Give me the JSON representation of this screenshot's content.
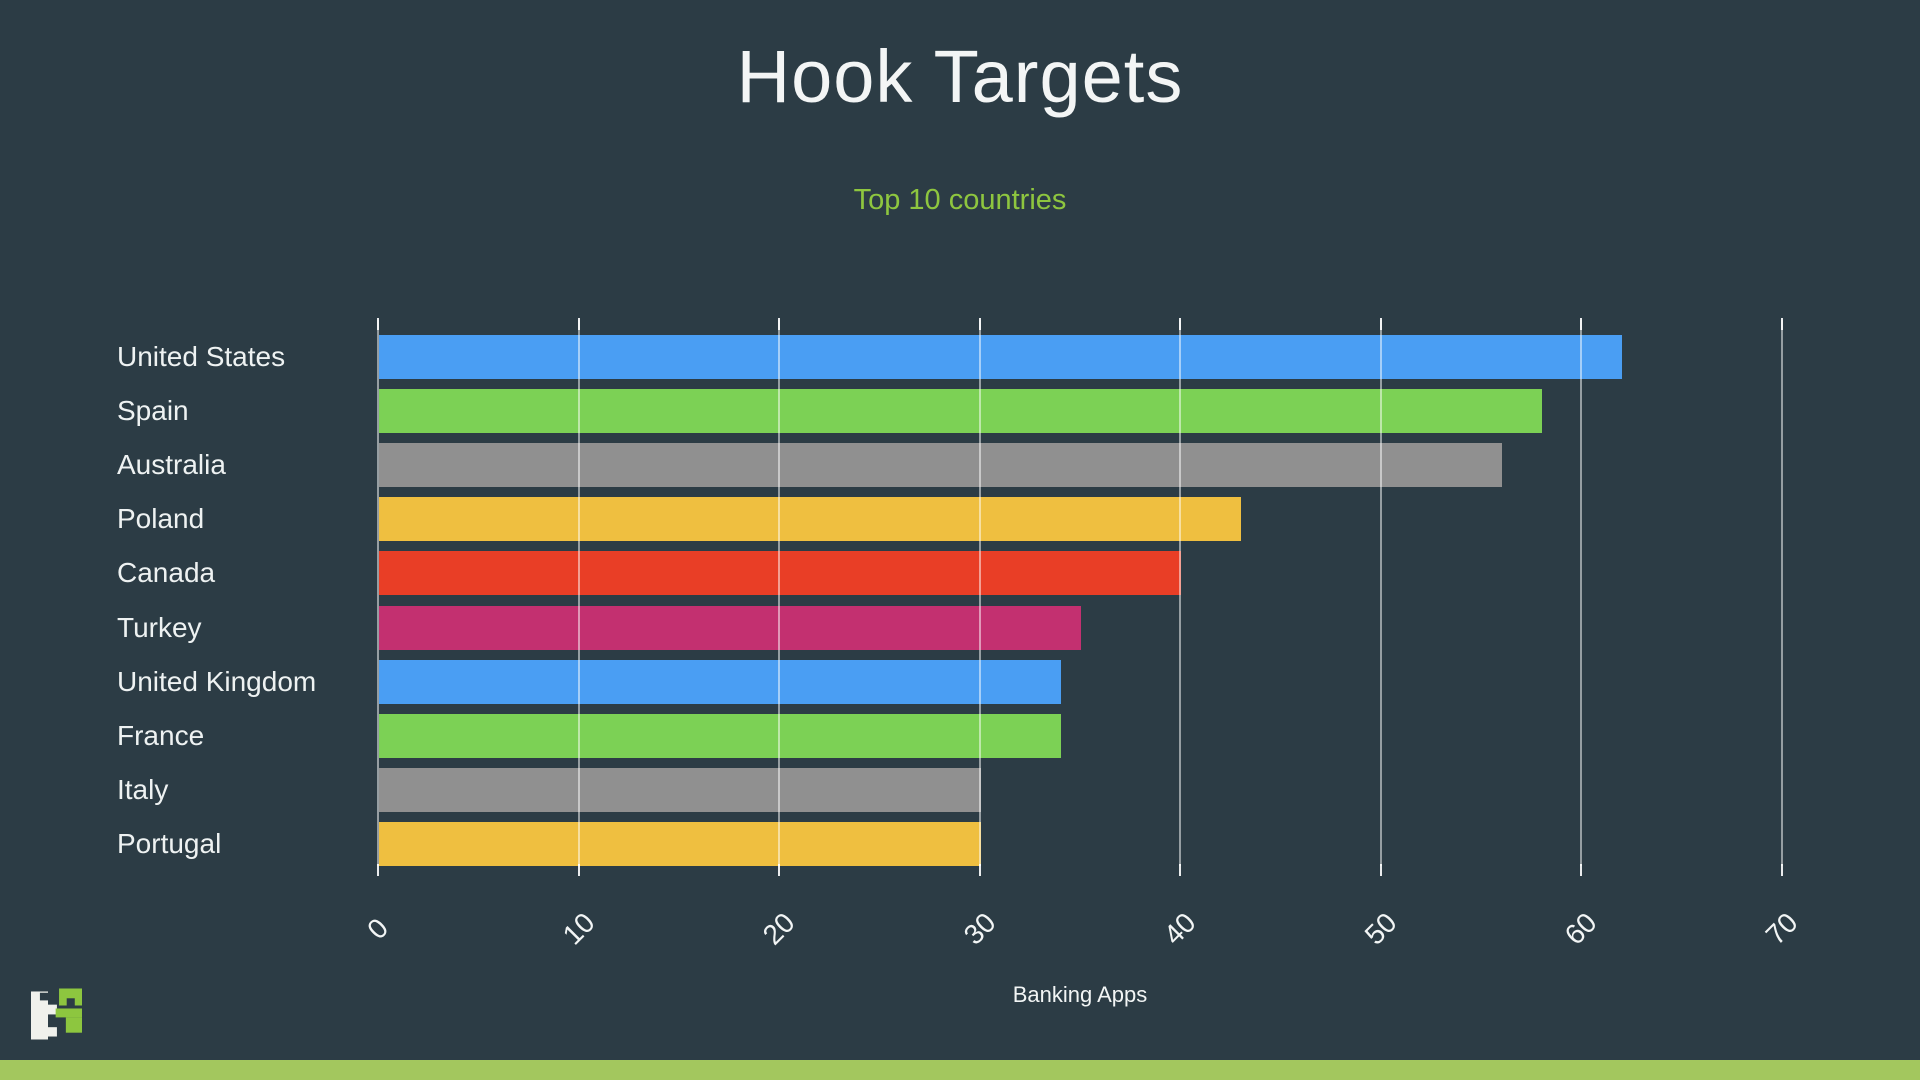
{
  "page": {
    "background": "#2c3c45",
    "accent_bar_color": "#a3c75e"
  },
  "header": {
    "title": "Hook Targets",
    "title_color": "#f3f5f5",
    "subtitle": "Top 10 countries",
    "subtitle_color": "#8ec63f"
  },
  "chart_data": {
    "type": "bar",
    "orientation": "horizontal",
    "title": "Hook Targets",
    "subtitle": "Top 10 countries",
    "xlabel": "Banking Apps",
    "categories": [
      "United States",
      "Spain",
      "Australia",
      "Poland",
      "Canada",
      "Turkey",
      "United Kingdom",
      "France",
      "Italy",
      "Portugal"
    ],
    "values": [
      62,
      58,
      56,
      43,
      40,
      35,
      34,
      34,
      30,
      30
    ],
    "bar_colors": [
      "#4a9ef3",
      "#7cd155",
      "#909090",
      "#efbf40",
      "#e93e26",
      "#c33070",
      "#4a9ef3",
      "#7cd155",
      "#909090",
      "#efbf40"
    ],
    "x_ticks": [
      0,
      10,
      20,
      30,
      40,
      50,
      60,
      70
    ],
    "xlim": [
      0,
      75
    ],
    "grid": true,
    "legend": false,
    "gridline_color": "rgba(255,255,255,0.5)",
    "tick_mark_color": "rgba(255,255,255,0.9)",
    "x_tick_label_color": "#f2f5f5",
    "x_tick_label_rotation": -45,
    "category_label_color": "#eef2f2",
    "x_axis_title_color": "#f2f5f5"
  },
  "footer": {
    "logo_left_glyph_color": "#f0f1ec",
    "logo_right_glyph_color": "#8dc63f"
  }
}
